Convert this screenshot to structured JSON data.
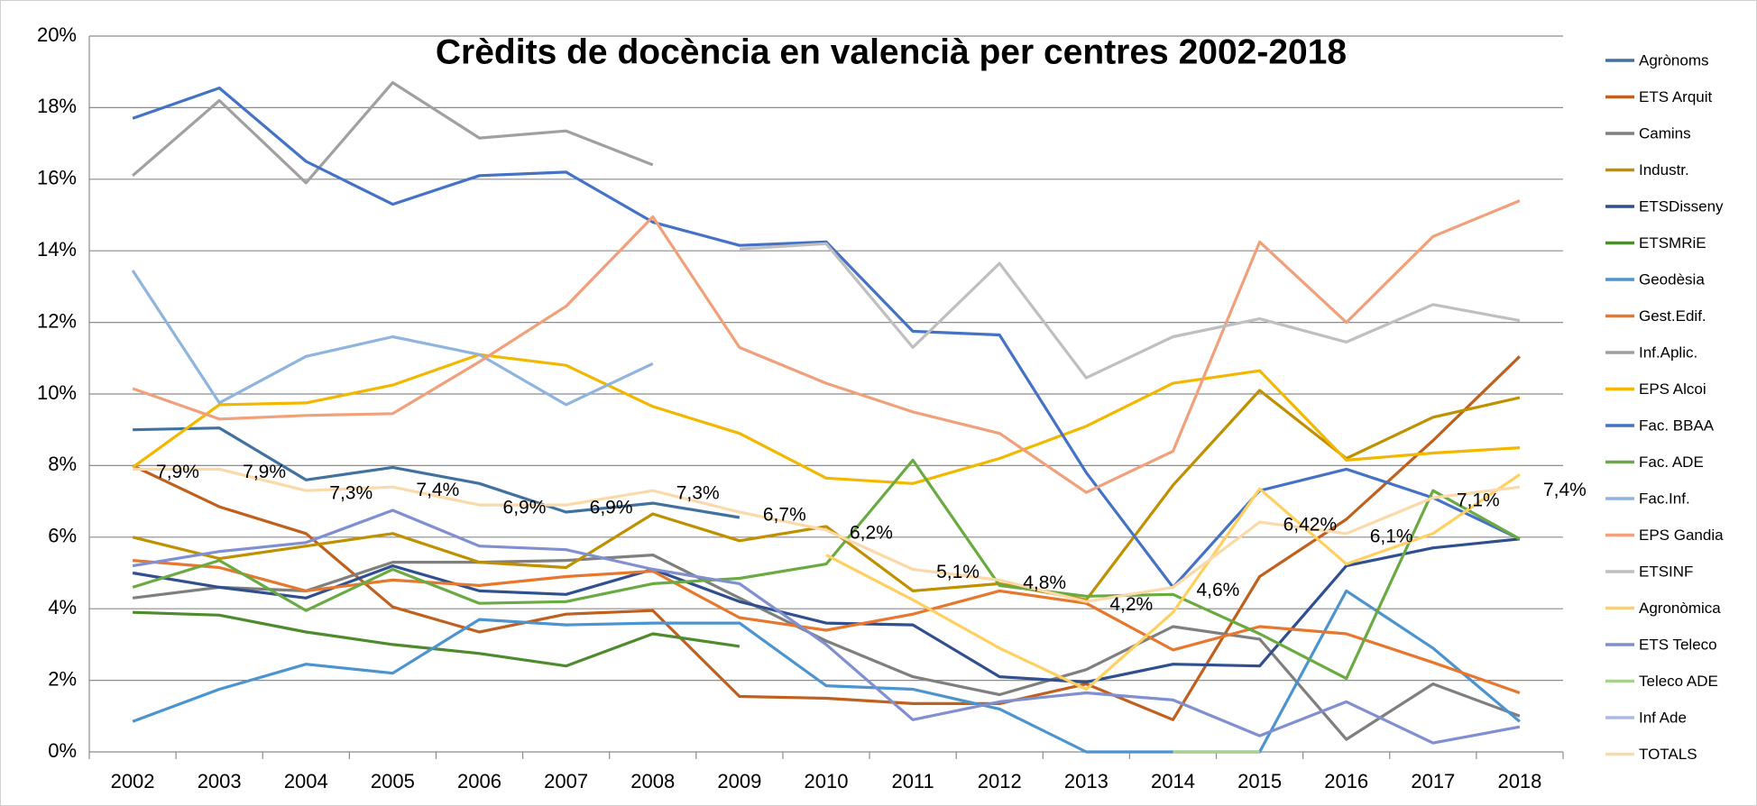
{
  "chart_data": {
    "type": "line",
    "title": "Crèdits de docència en valencià per centres 2002-2018",
    "categories": [
      "2002",
      "2003",
      "2004",
      "2005",
      "2006",
      "2007",
      "2008",
      "2009",
      "2010",
      "2011",
      "2012",
      "2013",
      "2014",
      "2015",
      "2016",
      "2017",
      "2018"
    ],
    "ylim": [
      0,
      20
    ],
    "yticks": [
      {
        "value": 0,
        "label": "0%"
      },
      {
        "value": 2,
        "label": "2%"
      },
      {
        "value": 4,
        "label": "4%"
      },
      {
        "value": 6,
        "label": "6%"
      },
      {
        "value": 8,
        "label": "8%"
      },
      {
        "value": 10,
        "label": "10%"
      },
      {
        "value": 12,
        "label": "12%"
      },
      {
        "value": 14,
        "label": "14%"
      },
      {
        "value": 16,
        "label": "16%"
      },
      {
        "value": 18,
        "label": "18%"
      },
      {
        "value": 20,
        "label": "20%"
      }
    ],
    "grid": true,
    "legend": "right",
    "series": [
      {
        "name": "Agrònoms",
        "color": "#41729f",
        "values": [
          9.0,
          9.05,
          7.6,
          7.95,
          7.5,
          6.7,
          6.95,
          6.55,
          null,
          null,
          null,
          null,
          null,
          null,
          null,
          null,
          null
        ]
      },
      {
        "name": "ETS Arquit",
        "color": "#c0601f",
        "values": [
          8.0,
          6.85,
          6.1,
          4.05,
          3.35,
          3.85,
          3.95,
          1.55,
          1.5,
          1.35,
          1.35,
          1.9,
          0.9,
          4.9,
          6.5,
          8.7,
          11.05
        ]
      },
      {
        "name": "Camins",
        "color": "#7f7f7f",
        "values": [
          4.3,
          4.6,
          4.5,
          5.3,
          5.3,
          5.35,
          5.5,
          4.3,
          3.1,
          2.1,
          1.6,
          2.3,
          3.5,
          3.15,
          0.35,
          1.9,
          1.0
        ]
      },
      {
        "name": "Industr.",
        "color": "#bf9000",
        "values": [
          6.0,
          5.4,
          5.75,
          6.1,
          5.3,
          5.15,
          6.65,
          5.9,
          6.3,
          4.5,
          4.7,
          4.25,
          7.45,
          10.1,
          8.2,
          9.35,
          9.9
        ]
      },
      {
        "name": "ETSDisseny",
        "color": "#2f4f8f",
        "values": [
          5.0,
          4.6,
          4.3,
          5.2,
          4.5,
          4.4,
          5.1,
          4.2,
          3.6,
          3.55,
          2.1,
          1.95,
          2.45,
          2.4,
          5.2,
          5.7,
          5.95
        ]
      },
      {
        "name": "ETSMRiE",
        "color": "#4e8a2e",
        "values": [
          3.9,
          3.82,
          3.35,
          3.0,
          2.75,
          2.4,
          3.3,
          2.95,
          null,
          null,
          null,
          null,
          null,
          null,
          null,
          null,
          null
        ]
      },
      {
        "name": "Geodèsia",
        "color": "#4b94cf",
        "values": [
          0.85,
          1.75,
          2.45,
          2.2,
          3.7,
          3.55,
          3.6,
          3.6,
          1.85,
          1.75,
          1.2,
          0,
          0,
          0,
          4.5,
          2.9,
          0.85
        ]
      },
      {
        "name": "Gest.Edif.",
        "color": "#e8772e",
        "values": [
          5.35,
          5.15,
          4.5,
          4.8,
          4.65,
          4.9,
          5.05,
          3.75,
          3.4,
          3.85,
          4.5,
          4.15,
          2.85,
          3.5,
          3.3,
          2.5,
          1.65
        ]
      },
      {
        "name": "Inf.Aplic.",
        "color": "#a0a0a0",
        "values": [
          16.1,
          18.2,
          15.9,
          18.7,
          17.15,
          17.35,
          16.4,
          null,
          null,
          null,
          null,
          null,
          null,
          null,
          null,
          null,
          null
        ]
      },
      {
        "name": "EPS Alcoi",
        "color": "#f2b800",
        "values": [
          7.95,
          9.7,
          9.75,
          10.25,
          11.1,
          10.8,
          9.65,
          8.9,
          7.65,
          7.5,
          8.2,
          9.1,
          10.3,
          10.65,
          8.15,
          8.35,
          8.5
        ]
      },
      {
        "name": "Fac. BBAA",
        "color": "#4472c4",
        "values": [
          17.7,
          18.55,
          16.5,
          15.3,
          16.1,
          16.2,
          14.8,
          14.15,
          14.25,
          11.75,
          11.65,
          7.8,
          4.6,
          7.3,
          7.9,
          7.1,
          5.95
        ]
      },
      {
        "name": "Fac. ADE",
        "color": "#6aaa42",
        "values": [
          4.6,
          5.35,
          3.95,
          5.1,
          4.15,
          4.2,
          4.7,
          4.85,
          5.25,
          8.15,
          4.65,
          4.35,
          4.4,
          3.3,
          2.05,
          7.3,
          5.95
        ]
      },
      {
        "name": "Fac.Inf.",
        "color": "#8fb4de",
        "values": [
          13.45,
          9.75,
          11.05,
          11.6,
          11.1,
          9.7,
          10.85,
          null,
          null,
          null,
          null,
          null,
          null,
          null,
          null,
          null,
          null
        ]
      },
      {
        "name": "EPS Gandia",
        "color": "#f0a07a",
        "values": [
          10.15,
          9.3,
          9.4,
          9.45,
          10.9,
          12.45,
          14.95,
          11.3,
          10.3,
          9.5,
          8.9,
          7.25,
          8.4,
          14.25,
          12.0,
          14.4,
          15.4
        ]
      },
      {
        "name": "ETSINF",
        "color": "#bfbfbf",
        "values": [
          null,
          null,
          null,
          null,
          null,
          null,
          null,
          14.05,
          14.2,
          11.3,
          13.65,
          10.45,
          11.6,
          12.1,
          11.45,
          12.5,
          12.05
        ]
      },
      {
        "name": "Agronòmica",
        "color": "#ffd060",
        "values": [
          null,
          null,
          null,
          null,
          null,
          null,
          null,
          null,
          5.5,
          4.25,
          2.9,
          1.75,
          3.9,
          7.35,
          5.25,
          6.1,
          7.75
        ]
      },
      {
        "name": "ETS Teleco",
        "color": "#7f8fd0",
        "values": [
          5.2,
          5.6,
          5.85,
          6.75,
          5.75,
          5.65,
          5.1,
          4.7,
          3.0,
          0.9,
          1.4,
          1.65,
          1.45,
          0.45,
          1.4,
          0.25,
          0.7
        ]
      },
      {
        "name": "Teleco ADE",
        "color": "#a9d18e",
        "values": [
          null,
          null,
          null,
          null,
          null,
          null,
          null,
          null,
          null,
          null,
          null,
          null,
          0,
          0,
          null,
          null,
          null
        ]
      },
      {
        "name": "Inf Ade",
        "color": "#aab8e8",
        "values": [
          null,
          null,
          null,
          null,
          null,
          null,
          null,
          null,
          null,
          null,
          null,
          null,
          null,
          null,
          null,
          null,
          null
        ]
      },
      {
        "name": "TOTALS",
        "color": "#fbd9a8",
        "values": [
          7.9,
          7.9,
          7.3,
          7.4,
          6.9,
          6.9,
          7.3,
          6.7,
          6.2,
          5.1,
          4.8,
          4.2,
          4.6,
          6.42,
          6.1,
          7.1,
          7.4
        ],
        "value_labels": [
          "7,9%",
          "7,9%",
          "7,3%",
          "7,4%",
          "6,9%",
          "6,9%",
          "7,3%",
          "6,7%",
          "6,2%",
          "5,1%",
          "4,8%",
          "4,2%",
          "4,6%",
          "6,42%",
          "6,1%",
          "7,1%",
          "7,4%"
        ]
      }
    ]
  }
}
